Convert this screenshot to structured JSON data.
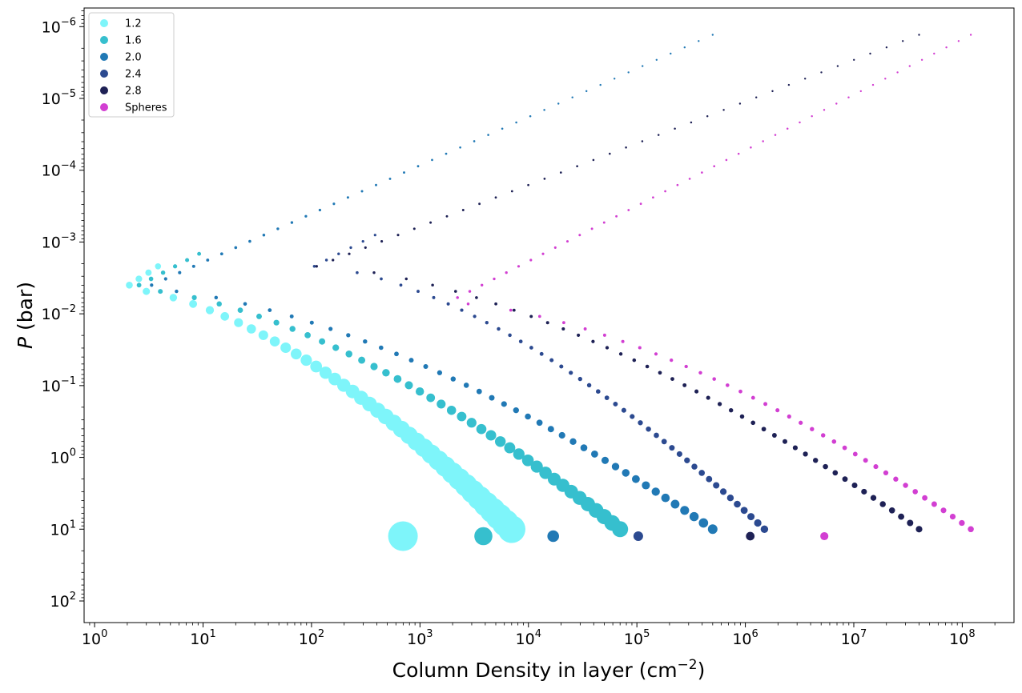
{
  "chart_data": {
    "type": "scatter",
    "xlabel": "Column Density in layer (cm",
    "xlabel_exponent": "−2",
    "xlabel_suffix": ")",
    "ylabel_symbol": "P",
    "ylabel_unit": "(bar)",
    "x_scale": "log",
    "y_scale": "log",
    "y_inverted": true,
    "xlim": [
      0.8,
      300000000
    ],
    "ylim": [
      200,
      5.5e-07
    ],
    "x_ticks": [
      {
        "base": "10",
        "exp": "0",
        "value": 1
      },
      {
        "base": "10",
        "exp": "1",
        "value": 10
      },
      {
        "base": "10",
        "exp": "2",
        "value": 100
      },
      {
        "base": "10",
        "exp": "3",
        "value": 1000
      },
      {
        "base": "10",
        "exp": "4",
        "value": 10000
      },
      {
        "base": "10",
        "exp": "5",
        "value": 100000
      },
      {
        "base": "10",
        "exp": "6",
        "value": 1000000
      },
      {
        "base": "10",
        "exp": "7",
        "value": 10000000
      },
      {
        "base": "10",
        "exp": "8",
        "value": 100000000
      }
    ],
    "y_ticks": [
      {
        "base": "10",
        "exp": "−6",
        "value": 1e-06
      },
      {
        "base": "10",
        "exp": "−5",
        "value": 1e-05
      },
      {
        "base": "10",
        "exp": "−4",
        "value": 0.0001
      },
      {
        "base": "10",
        "exp": "−3",
        "value": 0.001
      },
      {
        "base": "10",
        "exp": "−2",
        "value": 0.01
      },
      {
        "base": "10",
        "exp": "−1",
        "value": 0.1
      },
      {
        "base": "10",
        "exp": "0",
        "value": 1
      },
      {
        "base": "10",
        "exp": "1",
        "value": 10
      },
      {
        "base": "10",
        "exp": "2",
        "value": 100
      }
    ],
    "grid": false,
    "legend_position": "top-left",
    "series": [
      {
        "name": "1.2",
        "color": "#7ef5fa",
        "x_min": 1.85,
        "x_max": 7000,
        "turn_x": 1.85,
        "turn_p": 0.0045,
        "top_p": 0.002
      },
      {
        "name": "1.6",
        "color": "#36bfce",
        "x_min": 2.2,
        "x_max": 70000,
        "turn_x": 2.2,
        "turn_p": 0.0045,
        "top_p": 0.0012
      },
      {
        "name": "2.0",
        "color": "#2179b5",
        "x_min": 2.8,
        "x_max": 500000,
        "turn_x": 2.8,
        "turn_p": 0.0045,
        "top_p": 1.3e-06
      },
      {
        "name": "2.4",
        "color": "#2c4a90",
        "x_min": 105,
        "x_max": 1500000,
        "turn_x": 105,
        "turn_p": 0.0022,
        "top_p": 0.0007
      },
      {
        "name": "2.8",
        "color": "#1e2155",
        "x_min": 110,
        "x_max": 40000000,
        "turn_x": 110,
        "turn_p": 0.0022,
        "top_p": 1.3e-06
      },
      {
        "name": "Spheres",
        "color": "#d23fd2",
        "x_min": 1800,
        "x_max": 120000000,
        "turn_x": 1800,
        "turn_p": 0.007,
        "top_p": 1.3e-06
      }
    ]
  }
}
